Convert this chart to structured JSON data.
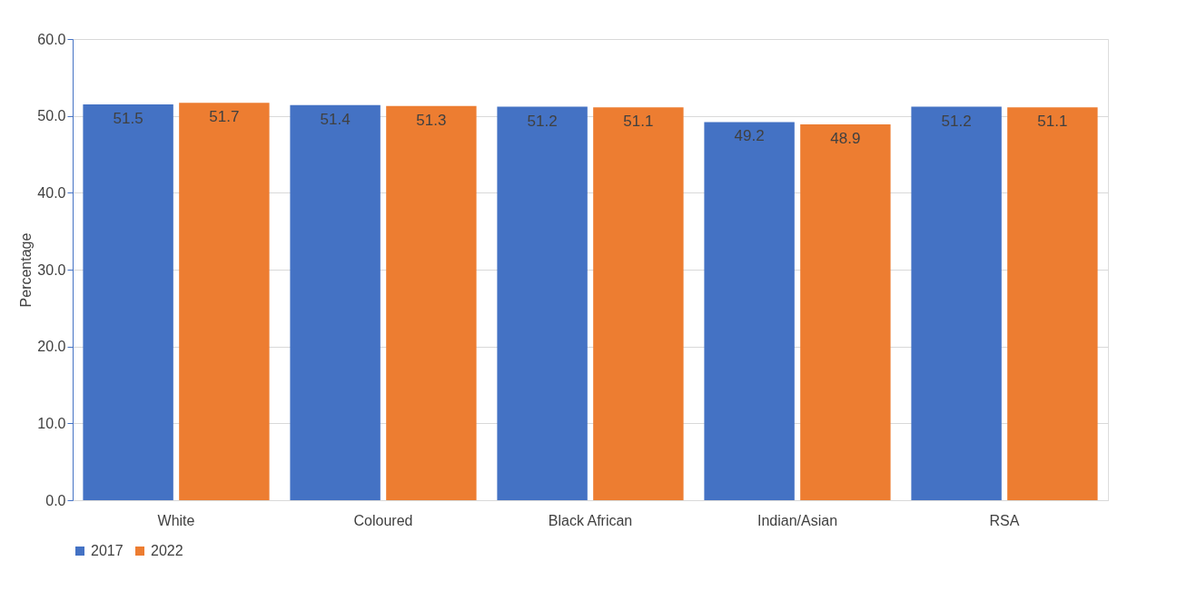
{
  "chart_data": {
    "type": "bar",
    "ylabel": "Percentage",
    "categories": [
      "White",
      "Coloured",
      "Black African",
      "Indian/Asian",
      "RSA"
    ],
    "series": [
      {
        "name": "2017",
        "color": "#4472c4",
        "values": [
          51.5,
          51.4,
          51.2,
          49.2,
          51.2
        ]
      },
      {
        "name": "2022",
        "color": "#ed7d31",
        "values": [
          51.7,
          51.3,
          51.1,
          48.9,
          51.1
        ]
      }
    ],
    "ylim": [
      0,
      60
    ],
    "yticks": [
      {
        "value": 0,
        "label": "0.0"
      },
      {
        "value": 10,
        "label": "10.0"
      },
      {
        "value": 20,
        "label": "20.0"
      },
      {
        "value": 30,
        "label": "30.0"
      },
      {
        "value": 40,
        "label": "40.0"
      },
      {
        "value": 50,
        "label": "50.0"
      },
      {
        "value": 60,
        "label": "60.0"
      }
    ],
    "grid": "y",
    "legend": "bottom",
    "data_labels": true
  }
}
